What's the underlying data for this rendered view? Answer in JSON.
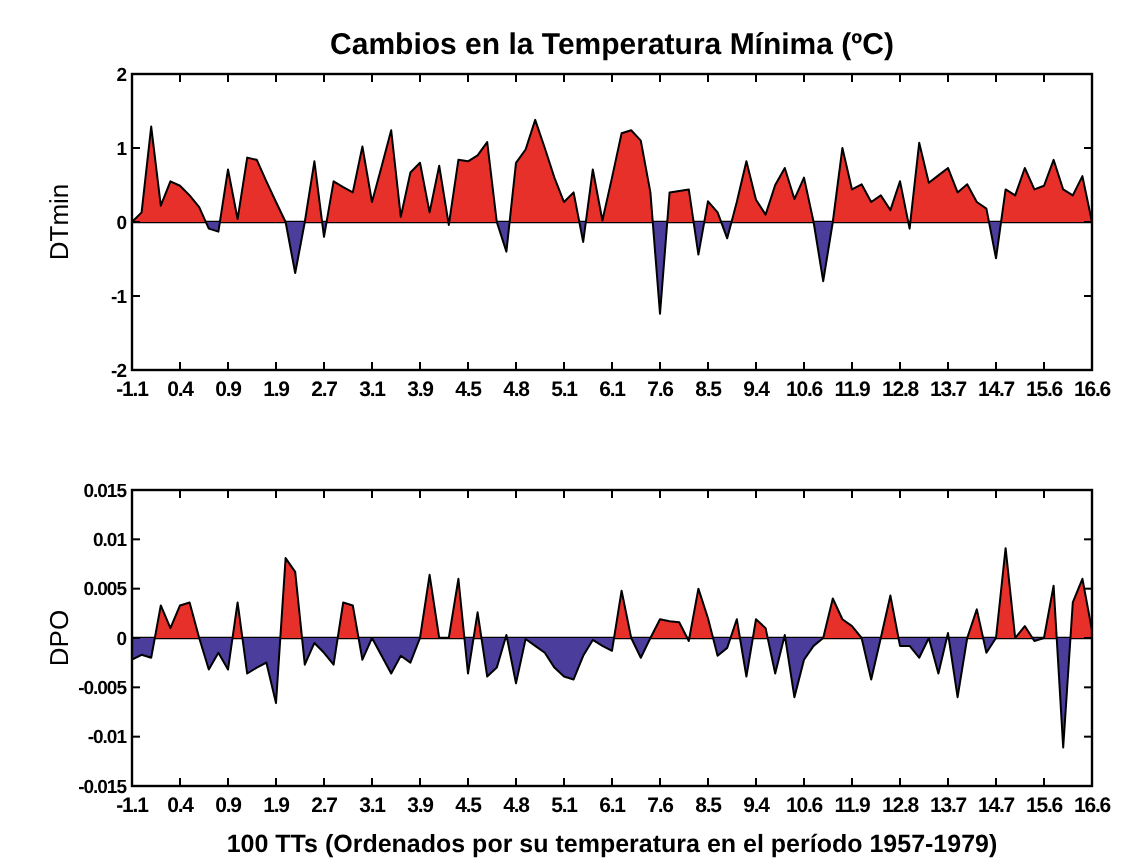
{
  "chart_data": [
    {
      "type": "area",
      "title": "Cambios en la Temperatura Mínima (ºC)",
      "ylabel": "DTmin",
      "colors": [
        "#e8302a",
        "#4b3d9c"
      ],
      "categories": [
        "-1.1",
        null,
        null,
        null,
        null,
        "0.4",
        null,
        null,
        null,
        null,
        "0.9",
        null,
        null,
        null,
        null,
        "1.9",
        null,
        null,
        null,
        null,
        "2.7",
        null,
        null,
        null,
        null,
        "3.1",
        null,
        null,
        null,
        null,
        "3.9",
        null,
        null,
        null,
        null,
        "4.5",
        null,
        null,
        null,
        null,
        "4.8",
        null,
        null,
        null,
        null,
        "5.1",
        null,
        null,
        null,
        null,
        "6.1",
        null,
        null,
        null,
        null,
        "7.6",
        null,
        null,
        null,
        null,
        "8.5",
        null,
        null,
        null,
        null,
        "9.4",
        null,
        null,
        null,
        null,
        "10.6",
        null,
        null,
        null,
        null,
        "11.9",
        null,
        null,
        null,
        null,
        "12.8",
        null,
        null,
        null,
        null,
        "13.7",
        null,
        null,
        null,
        null,
        "14.7",
        null,
        null,
        null,
        null,
        "15.6",
        null,
        null,
        null,
        null,
        "16.6"
      ],
      "ylim": [
        -2,
        2
      ],
      "yticks": [
        -2,
        -1,
        0,
        1,
        2
      ],
      "series": [
        {
          "color": "#000000",
          "values": [
            0,
            0.13,
            1.29,
            0.22,
            0.55,
            0.49,
            0.36,
            0.2,
            -0.09,
            -0.13,
            0.71,
            0.04,
            0.87,
            0.84,
            0.55,
            0.27,
            0,
            -0.69,
            0,
            0.82,
            -0.2,
            0.55,
            0.47,
            0.4,
            1.02,
            0.27,
            0.75,
            1.24,
            0.07,
            0.67,
            0.8,
            0.13,
            0.76,
            -0.04,
            0.84,
            0.82,
            0.9,
            1.08,
            0,
            -0.4,
            0.8,
            0.98,
            1.38,
            1,
            0.6,
            0.27,
            0.4,
            -0.27,
            0.71,
            0.02,
            0.6,
            1.2,
            1.24,
            1.1,
            0.4,
            -1.24,
            0.4,
            0.42,
            0.44,
            -0.44,
            0.28,
            0.13,
            -0.22,
            0.27,
            0.82,
            0.3,
            0.1,
            0.5,
            0.73,
            0.31,
            0.6,
            0,
            -0.8,
            0,
            1,
            0.44,
            0.51,
            0.27,
            0.36,
            0.16,
            0.55,
            -0.09,
            1.07,
            0.53,
            0.63,
            0.73,
            0.4,
            0.51,
            0.27,
            0.18,
            -0.49,
            0.44,
            0.36,
            0.73,
            0.44,
            0.49,
            0.84,
            0.44,
            0.36,
            0.62,
            0
          ]
        }
      ]
    },
    {
      "type": "area",
      "ylabel": "DPO",
      "xlabel": "100 TTs (Ordenados por su temperatura en el período 1957-1979)",
      "colors": [
        "#e8302a",
        "#4b3d9c"
      ],
      "categories": [
        "-1.1",
        null,
        null,
        null,
        null,
        "0.4",
        null,
        null,
        null,
        null,
        "0.9",
        null,
        null,
        null,
        null,
        "1.9",
        null,
        null,
        null,
        null,
        "2.7",
        null,
        null,
        null,
        null,
        "3.1",
        null,
        null,
        null,
        null,
        "3.9",
        null,
        null,
        null,
        null,
        "4.5",
        null,
        null,
        null,
        null,
        "4.8",
        null,
        null,
        null,
        null,
        "5.1",
        null,
        null,
        null,
        null,
        "6.1",
        null,
        null,
        null,
        null,
        "7.6",
        null,
        null,
        null,
        null,
        "8.5",
        null,
        null,
        null,
        null,
        "9.4",
        null,
        null,
        null,
        null,
        "10.6",
        null,
        null,
        null,
        null,
        "11.9",
        null,
        null,
        null,
        null,
        "12.8",
        null,
        null,
        null,
        null,
        "13.7",
        null,
        null,
        null,
        null,
        "14.7",
        null,
        null,
        null,
        null,
        "15.6",
        null,
        null,
        null,
        null,
        "16.6"
      ],
      "ylim": [
        -0.015,
        0.015
      ],
      "yticks": [
        -0.015,
        -0.01,
        -0.005,
        0,
        0.005,
        0.01,
        0.015
      ],
      "series": [
        {
          "color": "#000000",
          "values": [
            -0.0022,
            -0.0017,
            -0.002,
            0.0033,
            0.001,
            0.0033,
            0.0036,
            0,
            -0.0032,
            -0.0015,
            -0.0032,
            0.0036,
            -0.0036,
            -0.003,
            -0.0025,
            -0.0066,
            0.0081,
            0.0067,
            -0.0027,
            -0.0005,
            -0.0015,
            -0.0027,
            0.0036,
            0.0033,
            -0.0022,
            0,
            -0.0018,
            -0.0036,
            -0.0018,
            -0.0025,
            0,
            0.0064,
            0,
            0,
            0.006,
            -0.0036,
            0.0026,
            -0.0039,
            -0.003,
            0.0003,
            -0.0046,
            -0.0001,
            -0.0008,
            -0.0015,
            -0.003,
            -0.0039,
            -0.0042,
            -0.0018,
            -0.0002,
            -0.0008,
            -0.0013,
            0.0048,
            0,
            -0.002,
            0,
            0.0019,
            0.0017,
            0.0016,
            -0.0003,
            0.005,
            0.002,
            -0.0018,
            -0.001,
            0.0019,
            -0.0039,
            0.0019,
            0.001,
            -0.0036,
            0.0003,
            -0.006,
            -0.0022,
            -0.0008,
            0,
            0.004,
            0.0019,
            0.0012,
            0,
            -0.0042,
            0,
            0.0043,
            -0.0008,
            -0.0008,
            -0.002,
            0,
            -0.0036,
            0.0005,
            -0.006,
            0,
            0.0029,
            -0.0015,
            0,
            0.0091,
            0,
            0.0012,
            -0.0003,
            0,
            0.0053,
            -0.0111,
            0.0036,
            0.006,
            0.0008
          ]
        }
      ]
    }
  ]
}
